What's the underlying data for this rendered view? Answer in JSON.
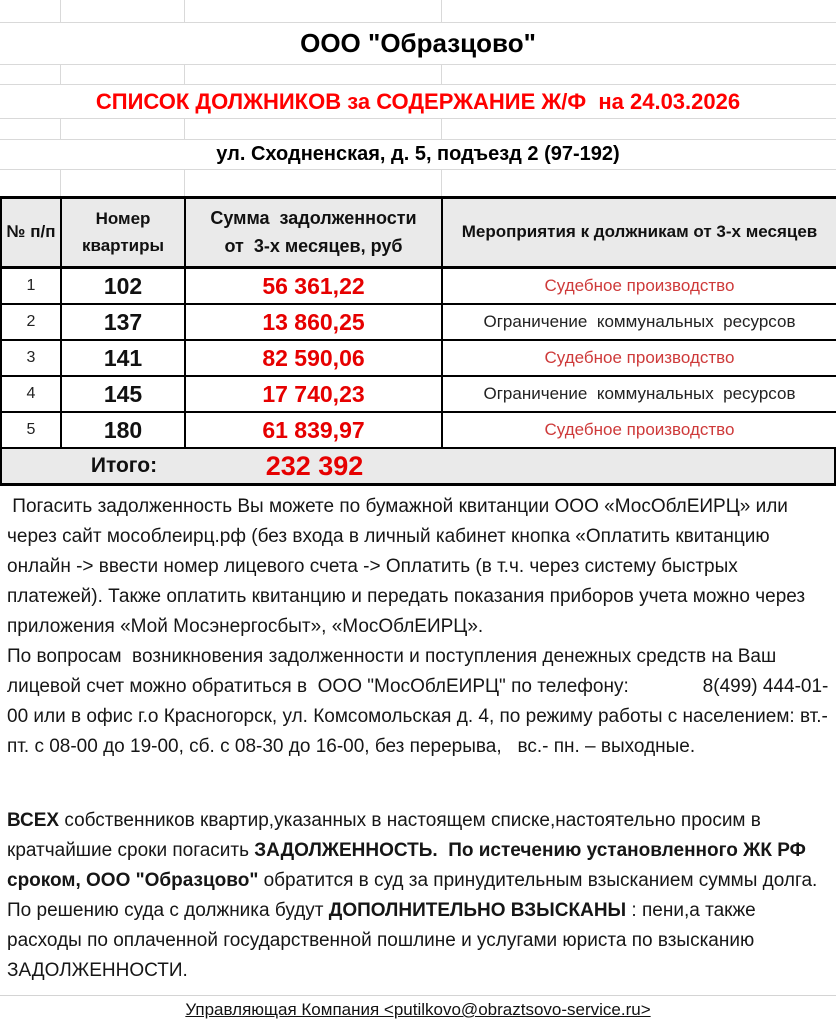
{
  "header": {
    "company_title": "ООО \"Образцово\"",
    "list_title": "СПИСОК ДОЛЖНИКОВ за СОДЕРЖАНИЕ Ж/Ф  на 24.03.2026",
    "address": "ул. Сходненская, д. 5, подъезд 2 (97-192)"
  },
  "table": {
    "col_npp": "№ п/п",
    "col_apartment": "Номер квартиры",
    "col_debt": "Сумма  задолженности от  3-х месяцев, руб",
    "col_actions": "Мероприятия к должникам от 3-х месяцев",
    "rows": [
      {
        "num": "1",
        "apartment": "102",
        "debt": "56 361,22",
        "action": "Судебное производство",
        "action_class": "act-red"
      },
      {
        "num": "2",
        "apartment": "137",
        "debt": "13 860,25",
        "action": "Ограничение  коммунальных  ресурсов",
        "action_class": "act-dark"
      },
      {
        "num": "3",
        "apartment": "141",
        "debt": "82 590,06",
        "action": "Судебное производство",
        "action_class": "act-red"
      },
      {
        "num": "4",
        "apartment": "145",
        "debt": "17 740,23",
        "action": "Ограничение  коммунальных  ресурсов",
        "action_class": "act-dark"
      },
      {
        "num": "5",
        "apartment": "180",
        "debt": "61 839,97",
        "action": "Судебное производство",
        "action_class": "act-red"
      }
    ],
    "total_label": "Итого:",
    "total_value": "232 392"
  },
  "info": {
    "paragraph1": " Погасить задолженность Вы можете по бумажной квитанции ООО «МосОблЕИРЦ» или через сайт мособлеирц.рф (без входа в личный кабинет кнопка «Оплатить квитанцию онлайн -> ввести номер лицевого счета -> Оплатить (в т.ч. через систему быстрых платежей). Также оплатить квитанцию и передать показания приборов учета можно через приложения «Мой Мосэнергосбыт», «МосОблЕИРЦ».",
    "paragraph2": "По вопросам  возникновения задолженности и поступления денежных средств на Ваш лицевой счет можно обратиться в  ООО \"МосОблЕИРЦ\" по телефону:              8(499) 444-01-00 или в офис г.о Красногорск, ул. Комсомольская д. 4, по режиму работы с населением: вт.-пт. с 08-00 до 19-00, сб. с 08-30 до 16-00, без перерыва,   вс.- пн. – выходные."
  },
  "warning": {
    "runs": [
      {
        "text": "ВСЕХ",
        "bold": true
      },
      {
        "text": " собственников квартир,указанных в настоящем списке,настоятельно просим в кратчайшие сроки погасить ",
        "bold": false
      },
      {
        "text": "ЗАДОЛЖЕННОСТЬ.  По истечению установленного ЖК РФ сроком, ООО \"Образцово\"",
        "bold": true
      },
      {
        "text": " обратится в суд за принудительным взысканием суммы долга. По решению суда с должника будут ",
        "bold": false
      },
      {
        "text": "ДОПОЛНИТЕЛЬНО ВЗЫСКАНЫ",
        "bold": true
      },
      {
        "text": " : пени,а также расходы по оплаченной государственной пошлине и услугами юриста по взысканию ЗАДОЛЖЕННОСТИ.",
        "bold": false
      }
    ]
  },
  "footer": {
    "text": "Управляющая Компания <putilkovo@obraztsovo-service.ru>"
  },
  "colors": {
    "accent_red": "#ff0000",
    "value_red": "#e60000",
    "muted_red": "#ce3a3a",
    "header_gray": "#eaeaea",
    "grid_gray": "#d9d9d9"
  }
}
